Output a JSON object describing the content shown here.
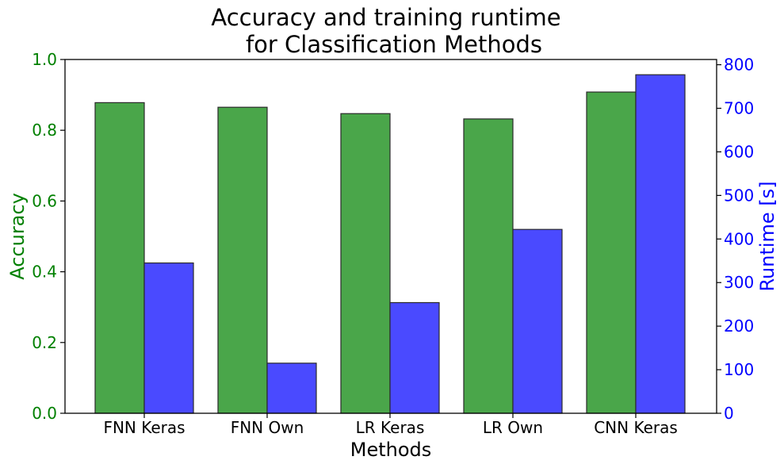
{
  "chart_data": {
    "type": "bar",
    "title": [
      "Accuracy and training runtime",
      "for Classification Methods"
    ],
    "xlabel": "Methods",
    "categories": [
      "FNN Keras",
      "FNN Own",
      "LR Keras",
      "LR Own",
      "CNN Keras"
    ],
    "series": [
      {
        "axis": "left",
        "label": "Accuracy",
        "values": [
          0.878,
          0.865,
          0.847,
          0.832,
          0.908
        ],
        "color": "#4aa64a",
        "axis_color": "#008000"
      },
      {
        "axis": "right",
        "label": "Runtime [s]",
        "values": [
          345,
          115,
          254,
          422,
          777
        ],
        "color": "#4a4aff",
        "axis_color": "#0000ff"
      }
    ],
    "ylim_left": [
      0,
      1.0
    ],
    "yticks_left": [
      "0.0",
      "0.2",
      "0.4",
      "0.6",
      "0.8",
      "1.0"
    ],
    "ylim_right": [
      0,
      812
    ],
    "yticks_right": [
      "0",
      "100",
      "200",
      "300",
      "400",
      "500",
      "600",
      "700",
      "800"
    ],
    "grid": false,
    "legend": "none"
  }
}
